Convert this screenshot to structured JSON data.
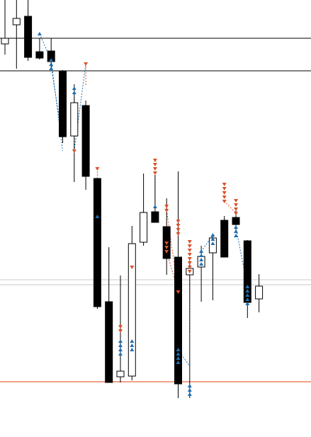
{
  "window": {
    "title": ""
  },
  "colors": {
    "background": "#ffffff",
    "bull_body": "#ffffff",
    "bear_body": "#000000",
    "wick": "#000000",
    "buy_marker": "#1f6fb4",
    "sell_marker": "#d9532b",
    "level_line": "#000000",
    "light_level": "#c8c8c8",
    "stop_line": "#e04010"
  },
  "icons": {
    "buy": "up-arrow-icon",
    "sell": "down-arrow-icon"
  },
  "chart_data": {
    "type": "candlestick",
    "title": "",
    "xlabel": "",
    "ylabel": "",
    "grid": false,
    "legend": "none",
    "price_scale": {
      "top": 617,
      "bottom": 0
    },
    "candles": [
      {
        "o": 555,
        "h": 617,
        "l": 540,
        "c": 563
      },
      {
        "o": 582,
        "h": 617,
        "l": 520,
        "c": 591
      },
      {
        "o": 594,
        "h": 617,
        "l": 531,
        "c": 536
      },
      {
        "o": 544,
        "h": 563,
        "l": 533,
        "c": 535
      },
      {
        "o": 545,
        "h": 563,
        "l": 519,
        "c": 530
      },
      {
        "o": 516,
        "h": 518,
        "l": 415,
        "c": 424
      },
      {
        "o": 425,
        "h": 498,
        "l": 360,
        "c": 472
      },
      {
        "o": 468,
        "h": 475,
        "l": 349,
        "c": 368
      },
      {
        "o": 365,
        "h": 365,
        "l": 181,
        "c": 184
      },
      {
        "o": 191,
        "h": 268,
        "l": 77,
        "c": 77
      },
      {
        "o": 85,
        "h": 228,
        "l": 77,
        "c": 93
      },
      {
        "o": 86,
        "h": 298,
        "l": 80,
        "c": 273
      },
      {
        "o": 275,
        "h": 372,
        "l": 270,
        "c": 317
      },
      {
        "o": 318,
        "h": 370,
        "l": 303,
        "c": 303
      },
      {
        "o": 297,
        "h": 337,
        "l": 229,
        "c": 252
      },
      {
        "o": 254,
        "h": 375,
        "l": 55,
        "c": 75
      },
      {
        "o": 229,
        "h": 249,
        "l": 55,
        "c": 238
      },
      {
        "o": 240,
        "h": 270,
        "l": 191,
        "c": 255
      },
      {
        "o": 260,
        "h": 283,
        "l": 193,
        "c": 281
      },
      {
        "o": 306,
        "h": 312,
        "l": 254,
        "c": 254
      },
      {
        "o": 310,
        "h": 322,
        "l": 289,
        "c": 300
      },
      {
        "o": 277,
        "h": 278,
        "l": 168,
        "c": 190
      },
      {
        "o": 195,
        "h": 230,
        "l": 176,
        "c": 213
      }
    ],
    "levels": [
      {
        "price": 563,
        "style": "solid"
      },
      {
        "price": 517,
        "style": "solid"
      },
      {
        "price": 222,
        "style": "light"
      },
      {
        "price": 215,
        "style": "light"
      },
      {
        "price": 78,
        "style": "stop"
      }
    ],
    "trade_markers": [
      {
        "bar": 3,
        "price": 569,
        "side": "buy",
        "count": 1
      },
      {
        "bar": 4,
        "price": 532,
        "side": "buy",
        "count": 3
      },
      {
        "bar": 6,
        "price": 404,
        "side": "sell",
        "count": 1
      },
      {
        "bar": 6,
        "price": 492,
        "side": "buy",
        "count": 2
      },
      {
        "bar": 7,
        "price": 527,
        "side": "sell",
        "count": 1
      },
      {
        "bar": 8,
        "price": 379,
        "side": "sell",
        "count": 1
      },
      {
        "bar": 8,
        "price": 311,
        "side": "buy",
        "count": 1
      },
      {
        "bar": 10,
        "price": 150,
        "side": "sell",
        "count": 2
      },
      {
        "bar": 10,
        "price": 135,
        "side": "buy",
        "count": 4
      },
      {
        "bar": 11,
        "price": 240,
        "side": "sell",
        "count": 1
      },
      {
        "bar": 11,
        "price": 135,
        "side": "buy",
        "count": 3
      },
      {
        "bar": 13,
        "price": 373,
        "side": "sell",
        "count": 4
      },
      {
        "bar": 13,
        "price": 325,
        "side": "buy",
        "count": 1
      },
      {
        "bar": 14,
        "price": 320,
        "side": "sell",
        "count": 2
      },
      {
        "bar": 14,
        "price": 262,
        "side": "sell",
        "count": 3
      },
      {
        "bar": 15,
        "price": 287,
        "side": "sell",
        "count": 4
      },
      {
        "bar": 15,
        "price": 205,
        "side": "sell",
        "count": 1
      },
      {
        "bar": 15,
        "price": 123,
        "side": "buy",
        "count": 4
      },
      {
        "bar": 16,
        "price": 234,
        "side": "sell",
        "count": 8
      },
      {
        "bar": 16,
        "price": 72,
        "side": "buy",
        "count": 3
      },
      {
        "bar": 17,
        "price": 262,
        "side": "buy",
        "count": 4
      },
      {
        "bar": 18,
        "price": 285,
        "side": "buy",
        "count": 3
      },
      {
        "bar": 19,
        "price": 333,
        "side": "sell",
        "count": 5
      },
      {
        "bar": 20,
        "price": 316,
        "side": "sell",
        "count": 4
      },
      {
        "bar": 20,
        "price": 296,
        "side": "buy",
        "count": 3
      },
      {
        "bar": 21,
        "price": 212,
        "side": "buy",
        "count": 5
      }
    ],
    "connectors": [
      {
        "from": [
          3,
          569
        ],
        "to": [
          4,
          532
        ],
        "color": "buy"
      },
      {
        "from": [
          4,
          532
        ],
        "to": [
          5,
          404
        ],
        "color": "buy"
      },
      {
        "from": [
          4,
          523
        ],
        "to": [
          5,
          420
        ],
        "color": "buy"
      },
      {
        "from": [
          6,
          404
        ],
        "to": [
          7,
          527
        ],
        "color": "buy"
      },
      {
        "from": [
          6,
          404
        ],
        "to": [
          6,
          480
        ],
        "color": "buy"
      },
      {
        "from": [
          7,
          527
        ],
        "to": [
          7,
          495
        ],
        "color": "sell"
      },
      {
        "from": [
          8,
          379
        ],
        "to": [
          8,
          311
        ],
        "color": "sell"
      },
      {
        "from": [
          10,
          150
        ],
        "to": [
          10,
          135
        ],
        "color": "sell"
      },
      {
        "from": [
          11,
          240
        ],
        "to": [
          11,
          135
        ],
        "color": "buy"
      },
      {
        "from": [
          13,
          373
        ],
        "to": [
          13,
          325
        ],
        "color": "sell"
      },
      {
        "from": [
          14,
          320
        ],
        "to": [
          15,
          205
        ],
        "color": "sell"
      },
      {
        "from": [
          14,
          262
        ],
        "to": [
          15,
          205
        ],
        "color": "sell"
      },
      {
        "from": [
          15,
          123
        ],
        "to": [
          16,
          100
        ],
        "color": "buy"
      },
      {
        "from": [
          16,
          234
        ],
        "to": [
          16,
          148
        ],
        "color": "sell"
      },
      {
        "from": [
          17,
          262
        ],
        "to": [
          18,
          285
        ],
        "color": "buy"
      },
      {
        "from": [
          19,
          333
        ],
        "to": [
          20,
          316
        ],
        "color": "sell"
      },
      {
        "from": [
          20,
          296
        ],
        "to": [
          21,
          212
        ],
        "color": "buy"
      }
    ]
  }
}
